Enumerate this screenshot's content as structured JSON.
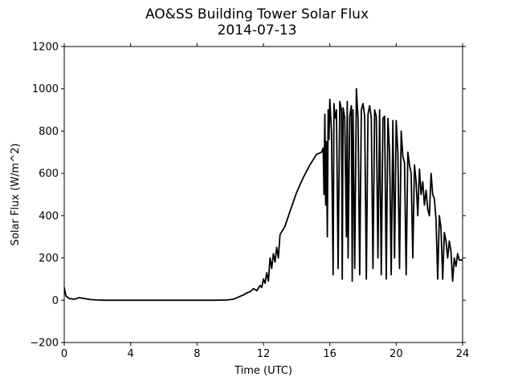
{
  "chart_data": {
    "type": "line",
    "title": "AO&SS Building Tower Solar Flux",
    "subtitle": "2014-07-13",
    "xlabel": "Time (UTC)",
    "ylabel": "Solar Flux (W/m^2)",
    "xlim": [
      0,
      24
    ],
    "ylim": [
      -200,
      1200
    ],
    "xticks": [
      0,
      4,
      8,
      12,
      16,
      20,
      24
    ],
    "yticks": [
      -200,
      0,
      200,
      400,
      600,
      800,
      1000,
      1200
    ],
    "xtick_labels": [
      "0",
      "4",
      "8",
      "12",
      "16",
      "20",
      "24"
    ],
    "ytick_labels": [
      "−200",
      "0",
      "200",
      "400",
      "600",
      "800",
      "1000",
      "1200"
    ],
    "grid": false,
    "series": [
      {
        "color": "#000000",
        "x": [
          0,
          0.1,
          0.3,
          0.6,
          0.9,
          1.2,
          1.6,
          2.0,
          2.5,
          3,
          4,
          5,
          6,
          7,
          8,
          9,
          9.8,
          10.2,
          10.5,
          10.8,
          11.0,
          11.2,
          11.4,
          11.6,
          11.8,
          11.9,
          12.0,
          12.1,
          12.2,
          12.3,
          12.4,
          12.5,
          12.6,
          12.7,
          12.8,
          12.9,
          13.0,
          13.3,
          13.6,
          14.0,
          14.4,
          14.8,
          15.2,
          15.5,
          15.6,
          15.65,
          15.7,
          15.75,
          15.8,
          15.85,
          15.9,
          15.95,
          16.0,
          16.1,
          16.2,
          16.25,
          16.3,
          16.4,
          16.5,
          16.6,
          16.7,
          16.75,
          16.8,
          16.9,
          17.0,
          17.05,
          17.1,
          17.2,
          17.3,
          17.35,
          17.4,
          17.5,
          17.6,
          17.7,
          17.8,
          17.9,
          18.0,
          18.1,
          18.2,
          18.3,
          18.4,
          18.5,
          18.6,
          18.7,
          18.8,
          18.9,
          19.0,
          19.1,
          19.2,
          19.3,
          19.4,
          19.5,
          19.6,
          19.7,
          19.8,
          19.9,
          20.0,
          20.1,
          20.2,
          20.3,
          20.4,
          20.5,
          20.6,
          20.7,
          20.8,
          20.9,
          21.0,
          21.1,
          21.2,
          21.3,
          21.4,
          21.5,
          21.6,
          21.7,
          21.8,
          21.9,
          22.0,
          22.1,
          22.2,
          22.3,
          22.4,
          22.5,
          22.6,
          22.7,
          22.8,
          22.9,
          23.0,
          23.1,
          23.2,
          23.3,
          23.4,
          23.5,
          23.6,
          23.7,
          23.8,
          23.9,
          24.0
        ],
        "y": [
          60,
          20,
          8,
          5,
          12,
          8,
          3,
          1,
          0,
          0,
          0,
          0,
          0,
          0,
          0,
          0,
          1,
          5,
          15,
          25,
          35,
          40,
          55,
          45,
          70,
          60,
          100,
          80,
          130,
          90,
          200,
          150,
          220,
          180,
          250,
          200,
          310,
          350,
          420,
          510,
          580,
          640,
          690,
          700,
          720,
          500,
          880,
          450,
          750,
          300,
          900,
          760,
          950,
          800,
          120,
          930,
          860,
          900,
          150,
          940,
          900,
          100,
          910,
          860,
          300,
          940,
          200,
          870,
          920,
          90,
          900,
          150,
          1000,
          860,
          120,
          900,
          930,
          870,
          100,
          880,
          920,
          860,
          150,
          900,
          870,
          200,
          900,
          120,
          860,
          870,
          100,
          860,
          700,
          120,
          850,
          200,
          850,
          700,
          150,
          800,
          680,
          650,
          120,
          700,
          640,
          600,
          200,
          640,
          560,
          400,
          620,
          500,
          560,
          450,
          520,
          430,
          400,
          600,
          500,
          480,
          380,
          100,
          400,
          340,
          100,
          320,
          280,
          200,
          280,
          230,
          90,
          200,
          160,
          220,
          190,
          190,
          190
        ]
      }
    ]
  }
}
